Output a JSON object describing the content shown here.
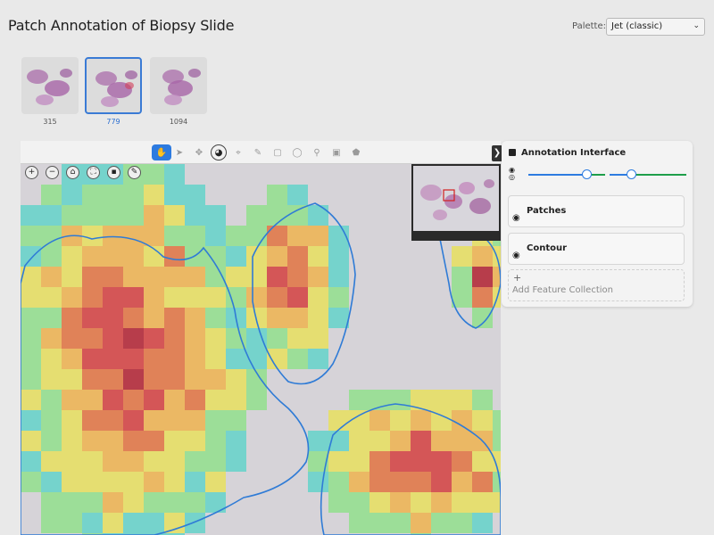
{
  "header": {
    "title": "Patch Annotation of Biopsy Slide",
    "palette_label": "Palette:",
    "palette_value": "Jet (classic)"
  },
  "thumbnails": [
    {
      "label": "315",
      "selected": false
    },
    {
      "label": "779",
      "selected": true
    },
    {
      "label": "1094",
      "selected": false
    }
  ],
  "toolbar": {
    "tools": [
      {
        "name": "pan-hand-icon",
        "glyph": "✋",
        "active": true
      },
      {
        "name": "pointer-icon",
        "glyph": "➤",
        "active": false
      },
      {
        "name": "move-icon",
        "glyph": "✥",
        "active": false
      },
      {
        "name": "palette-icon",
        "glyph": "◕",
        "outlined": true
      },
      {
        "name": "polygon-icon",
        "glyph": "⌖",
        "active": false
      },
      {
        "name": "brush-icon",
        "glyph": "✎",
        "active": false
      },
      {
        "name": "rectangle-icon",
        "glyph": "▢",
        "active": false
      },
      {
        "name": "ellipse-icon",
        "glyph": "◯",
        "active": false
      },
      {
        "name": "point-icon",
        "glyph": "⚲",
        "active": false
      },
      {
        "name": "image-icon",
        "glyph": "▣",
        "active": false
      },
      {
        "name": "tag-icon",
        "glyph": "⬟",
        "active": false
      }
    ],
    "toggle_glyph": "❯"
  },
  "nav_buttons": [
    {
      "name": "zoom-in-button",
      "glyph": "+"
    },
    {
      "name": "zoom-out-button",
      "glyph": "−"
    },
    {
      "name": "home-button",
      "glyph": "⌂"
    },
    {
      "name": "fullpage-button",
      "glyph": "⛶"
    },
    {
      "name": "save-view-button",
      "glyph": "▪"
    },
    {
      "name": "pencil-button",
      "glyph": "✎"
    }
  ],
  "panel": {
    "title": "Annotation Interface",
    "slider_1_value": 0.75,
    "slider_2_value": 0.28,
    "layers": [
      {
        "label": "Patches"
      },
      {
        "label": "Contour"
      }
    ],
    "add_label": "Add Feature Collection",
    "add_glyph": "+"
  },
  "colors": {
    "accent": "#2d7be0",
    "slider_green": "#1e9e4a",
    "contour": "#2f7bd6"
  }
}
